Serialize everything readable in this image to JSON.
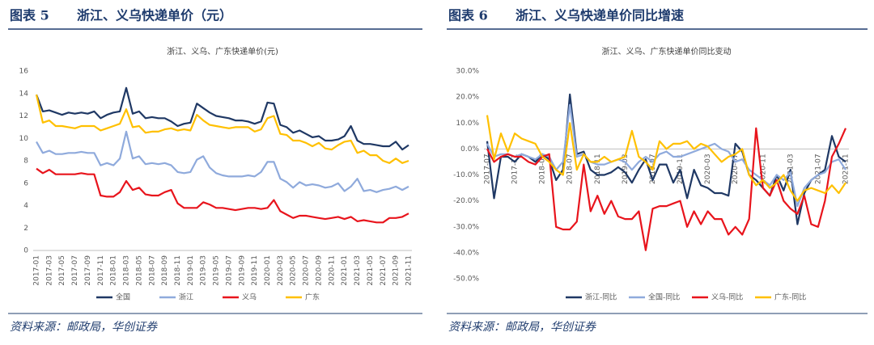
{
  "figures": [
    {
      "number": "图表 5",
      "caption": "浙江、义乌快递单价（元）",
      "source": "资料来源：邮政局，华创证券"
    },
    {
      "number": "图表 6",
      "caption": "浙江、义乌快递单价同比增速",
      "source": "资料来源：邮政局，华创证券"
    }
  ],
  "chart_data": [
    {
      "type": "line",
      "title": "浙江、义乌、广东快递单价(元)",
      "categories": [
        "2017-01",
        null,
        "2017-03",
        null,
        "2017-05",
        null,
        "2017-07",
        null,
        "2017-09",
        null,
        "2017-11",
        null,
        "2018-01",
        null,
        "2018-03",
        null,
        "2018-05",
        null,
        "2018-07",
        null,
        "2018-09",
        null,
        "2018-11",
        null,
        "2019-01",
        null,
        "2019-03",
        null,
        "2019-05",
        null,
        "2019-07",
        null,
        "2019-09",
        null,
        "2019-11",
        null,
        "2020-01",
        null,
        "2020-03",
        null,
        "2020-05",
        null,
        "2020-07",
        null,
        "2020-09",
        null,
        "2020-11",
        null,
        "2021-01",
        null,
        "2021-03",
        null,
        "2021-05",
        null,
        "2021-07",
        null,
        "2021-09",
        null,
        "2021-11"
      ],
      "series": [
        {
          "name": "全国",
          "color": "#1f3864",
          "values": [
            13.9,
            12.4,
            12.5,
            12.3,
            12.1,
            12.3,
            12.2,
            12.3,
            12.2,
            12.4,
            11.8,
            12.1,
            12.3,
            12.4,
            14.5,
            12.2,
            12.4,
            11.8,
            11.9,
            11.8,
            11.8,
            11.5,
            11.1,
            11.3,
            11.4,
            13.1,
            12.7,
            12.3,
            12.0,
            11.9,
            11.8,
            11.6,
            11.6,
            11.5,
            11.3,
            11.5,
            13.2,
            13.1,
            11.2,
            11.0,
            10.5,
            10.7,
            10.4,
            10.1,
            10.2,
            9.8,
            9.8,
            9.9,
            10.2,
            11.1,
            9.8,
            9.5,
            9.5,
            9.4,
            9.3,
            9.3,
            9.7,
            9.0,
            9.4
          ]
        },
        {
          "name": "浙江",
          "color": "#8faadc",
          "values": [
            9.7,
            8.7,
            8.9,
            8.6,
            8.6,
            8.7,
            8.7,
            8.8,
            8.7,
            8.7,
            7.6,
            7.8,
            7.6,
            8.2,
            10.6,
            8.2,
            8.4,
            7.7,
            7.8,
            7.7,
            7.8,
            7.6,
            7.0,
            6.9,
            7.0,
            8.1,
            8.4,
            7.4,
            6.9,
            6.7,
            6.6,
            6.6,
            6.6,
            6.7,
            6.6,
            7.0,
            7.9,
            7.9,
            6.4,
            6.1,
            5.6,
            6.1,
            5.8,
            5.9,
            5.8,
            5.6,
            5.7,
            6.0,
            5.3,
            5.7,
            6.4,
            5.3,
            5.4,
            5.2,
            5.4,
            5.5,
            5.7,
            5.4,
            5.7
          ]
        },
        {
          "name": "义乌",
          "color": "#e8141c",
          "values": [
            7.3,
            6.9,
            7.2,
            6.8,
            6.8,
            6.8,
            6.8,
            6.9,
            6.8,
            6.8,
            4.9,
            4.8,
            4.8,
            5.2,
            6.2,
            5.4,
            5.6,
            5.0,
            4.9,
            4.9,
            5.2,
            5.4,
            4.2,
            3.8,
            3.8,
            3.8,
            4.3,
            4.1,
            3.8,
            3.8,
            3.7,
            3.6,
            3.7,
            3.8,
            3.8,
            3.7,
            3.8,
            4.5,
            3.5,
            3.2,
            2.9,
            3.1,
            3.1,
            3.0,
            2.9,
            2.8,
            2.9,
            3.0,
            2.8,
            3.0,
            2.6,
            2.7,
            2.6,
            2.5,
            2.5,
            2.9,
            2.9,
            3.0,
            3.3
          ]
        },
        {
          "name": "广东",
          "color": "#ffc000",
          "values": [
            13.9,
            11.4,
            11.6,
            11.1,
            11.1,
            11.0,
            10.9,
            11.1,
            11.1,
            11.1,
            10.7,
            10.9,
            11.1,
            11.3,
            12.6,
            11.0,
            11.1,
            10.5,
            10.6,
            10.6,
            10.8,
            10.9,
            10.7,
            10.8,
            10.7,
            12.1,
            11.6,
            11.2,
            11.1,
            11.0,
            10.9,
            11.0,
            11.0,
            11.0,
            10.6,
            10.8,
            11.8,
            12.0,
            10.4,
            10.3,
            9.8,
            9.8,
            9.6,
            9.3,
            9.6,
            9.1,
            9.0,
            9.4,
            9.7,
            9.8,
            8.7,
            8.9,
            8.5,
            8.5,
            8.0,
            7.8,
            8.2,
            7.8,
            8.0
          ]
        }
      ],
      "ylim": [
        0,
        16
      ],
      "yticks": [
        0,
        2,
        4,
        6,
        8,
        10,
        12,
        14,
        16
      ],
      "grid": false,
      "legend": "bottom"
    },
    {
      "type": "line",
      "title": "浙江、义乌、广东快递单价同比变动",
      "categories": [
        "2017-07",
        null,
        null,
        null,
        "2017-11",
        null,
        null,
        null,
        "2018-03",
        null,
        null,
        null,
        "2018-07",
        null,
        null,
        null,
        "2018-11",
        null,
        null,
        null,
        "2019-03",
        null,
        null,
        null,
        "2019-07",
        null,
        null,
        null,
        "2019-11",
        null,
        null,
        null,
        "2020-03",
        null,
        null,
        null,
        "2020-07",
        null,
        null,
        null,
        "2020-11",
        null,
        null,
        null,
        "2021-03",
        null,
        null,
        null,
        "2021-07",
        null,
        null,
        null,
        "2021-11"
      ],
      "series": [
        {
          "name": "浙江-同比",
          "color": "#1f3864",
          "values": [
            3,
            -19,
            -3,
            -3,
            -5,
            -2,
            -3,
            -5,
            -2,
            -4,
            -12,
            -8,
            21,
            -2,
            -1,
            -8,
            -10,
            -10,
            -9,
            -7,
            -9,
            -13,
            -8,
            -4,
            -12,
            -6,
            -6,
            -13,
            -8,
            -19,
            -8,
            -14,
            -15,
            -17,
            -17,
            -18,
            2,
            -1,
            -10,
            -12,
            -15,
            -18,
            -10,
            -16,
            -8,
            -29,
            -17,
            -12,
            -10,
            -8,
            5,
            -3,
            -5
          ]
        },
        {
          "name": "全国-同比",
          "color": "#8faadc",
          "values": [
            2,
            -3,
            -2,
            -2,
            -3,
            -2,
            -3,
            -4,
            -2,
            -3,
            -8,
            -5,
            17,
            -3,
            -2,
            -5,
            -6,
            -6,
            -5,
            -4,
            -5,
            -8,
            -5,
            -3,
            -5,
            -2,
            -1,
            -3,
            -3,
            -2,
            -1,
            0,
            1,
            2,
            0,
            -1,
            -5,
            -4,
            -8,
            -10,
            -12,
            -14,
            -10,
            -12,
            -9,
            -22,
            -15,
            -12,
            -10,
            -9,
            -5,
            -4,
            -8
          ]
        },
        {
          "name": "义乌-同比",
          "color": "#e8141c",
          "values": [
            0,
            -5,
            -3,
            -2,
            -3,
            -3,
            -5,
            -6,
            -3,
            -2,
            -30,
            -31,
            -31,
            -28,
            -6,
            -24,
            -18,
            -25,
            -20,
            -26,
            -27,
            -27,
            -24,
            -39,
            -23,
            -22,
            -22,
            -21,
            -20,
            -30,
            -24,
            -29,
            -24,
            -27,
            -27,
            -33,
            -30,
            -33,
            -27,
            8,
            -15,
            -18,
            -12,
            -20,
            -23,
            -25,
            -18,
            -29,
            -30,
            -20,
            -3,
            2,
            8
          ]
        },
        {
          "name": "广东-同比",
          "color": "#ffc000",
          "values": [
            13,
            -4,
            6,
            -1,
            6,
            4,
            3,
            2,
            -3,
            -5,
            -8,
            -10,
            10,
            -8,
            -2,
            -5,
            -5,
            -3,
            -5,
            -4,
            -3,
            7,
            -3,
            -5,
            -8,
            3,
            0,
            2,
            2,
            3,
            0,
            2,
            1,
            -2,
            -5,
            -3,
            -2,
            0,
            -10,
            -14,
            -12,
            -15,
            -13,
            -10,
            -16,
            -20,
            -16,
            -15,
            -16,
            -17,
            -14,
            -17,
            -13
          ]
        }
      ],
      "ylim": [
        -50,
        30
      ],
      "yticks": [
        {
          "value": -50,
          "label": "-50.0%"
        },
        {
          "value": -40,
          "label": "-40.0%"
        },
        {
          "value": -30,
          "label": "-30.0%"
        },
        {
          "value": -20,
          "label": "-20.0%"
        },
        {
          "value": -10,
          "label": "-10.0%"
        },
        {
          "value": 0,
          "label": "0.0%"
        },
        {
          "value": 10,
          "label": "10.0%"
        },
        {
          "value": 20,
          "label": "20.0%"
        },
        {
          "value": 30,
          "label": "30.0%"
        }
      ],
      "grid": false,
      "legend": "bottom"
    }
  ]
}
